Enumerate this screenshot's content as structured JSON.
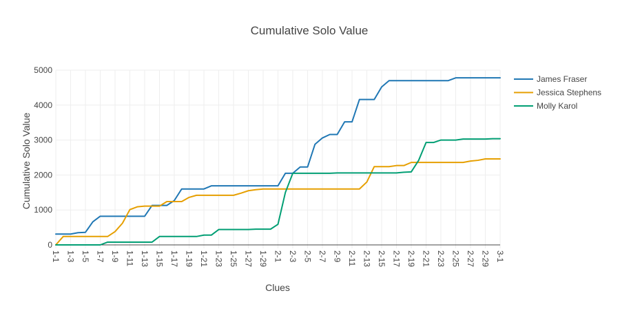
{
  "chart_data": {
    "type": "line",
    "title": "Cumulative Solo Value",
    "xlabel": "Clues",
    "ylabel": "Cumulative Solo Value",
    "ylim": [
      -100,
      5000
    ],
    "yticks": [
      0,
      1000,
      2000,
      3000,
      4000,
      5000
    ],
    "grid": true,
    "legend_position": "top-right",
    "x_tick_labels": [
      "1-1",
      "1-3",
      "1-5",
      "1-7",
      "1-9",
      "1-11",
      "1-13",
      "1-15",
      "1-17",
      "1-19",
      "1-21",
      "1-23",
      "1-25",
      "1-27",
      "1-29",
      "2-1",
      "2-3",
      "2-5",
      "2-7",
      "2-9",
      "2-11",
      "2-13",
      "2-15",
      "2-17",
      "2-19",
      "2-21",
      "2-23",
      "2-25",
      "2-27",
      "2-29",
      "3-1"
    ],
    "categories": [
      "1-1",
      "1-2",
      "1-3",
      "1-4",
      "1-5",
      "1-6",
      "1-7",
      "1-8",
      "1-9",
      "1-10",
      "1-11",
      "1-12",
      "1-13",
      "1-14",
      "1-15",
      "1-16",
      "1-17",
      "1-18",
      "1-19",
      "1-20",
      "1-21",
      "1-22",
      "1-23",
      "1-24",
      "1-25",
      "1-26",
      "1-27",
      "1-28",
      "1-29",
      "1-30",
      "2-1",
      "2-2",
      "2-3",
      "2-4",
      "2-5",
      "2-6",
      "2-7",
      "2-8",
      "2-9",
      "2-10",
      "2-11",
      "2-12",
      "2-13",
      "2-14",
      "2-15",
      "2-16",
      "2-17",
      "2-18",
      "2-19",
      "2-20",
      "2-21",
      "2-22",
      "2-23",
      "2-24",
      "2-25",
      "2-26",
      "2-27",
      "2-28",
      "2-29",
      "2-30",
      "3-1"
    ],
    "series": [
      {
        "name": "James Fraser",
        "color": "#1f77b4",
        "values": [
          310,
          310,
          310,
          350,
          360,
          660,
          820,
          820,
          820,
          820,
          820,
          820,
          820,
          1130,
          1130,
          1130,
          1270,
          1600,
          1600,
          1600,
          1600,
          1690,
          1690,
          1690,
          1690,
          1690,
          1690,
          1690,
          1690,
          1690,
          1690,
          2050,
          2050,
          2230,
          2230,
          2880,
          3060,
          3160,
          3160,
          3520,
          3520,
          4160,
          4160,
          4160,
          4520,
          4700,
          4700,
          4700,
          4700,
          4700,
          4700,
          4700,
          4700,
          4700,
          4780,
          4780,
          4780,
          4780,
          4780,
          4780,
          4780
        ]
      },
      {
        "name": "Jessica Stephens",
        "color": "#e69f00",
        "values": [
          0,
          240,
          240,
          240,
          240,
          240,
          240,
          240,
          380,
          620,
          1010,
          1090,
          1110,
          1110,
          1110,
          1240,
          1240,
          1240,
          1360,
          1420,
          1420,
          1420,
          1420,
          1420,
          1420,
          1480,
          1550,
          1580,
          1600,
          1600,
          1600,
          1600,
          1600,
          1600,
          1600,
          1600,
          1600,
          1600,
          1600,
          1600,
          1600,
          1600,
          1800,
          2240,
          2240,
          2240,
          2270,
          2270,
          2360,
          2360,
          2360,
          2360,
          2360,
          2360,
          2360,
          2360,
          2400,
          2420,
          2460,
          2460,
          2460
        ]
      },
      {
        "name": "Molly Karol",
        "color": "#009e73",
        "values": [
          0,
          0,
          0,
          0,
          0,
          0,
          0,
          80,
          80,
          80,
          80,
          80,
          80,
          80,
          240,
          240,
          240,
          240,
          240,
          240,
          280,
          280,
          440,
          440,
          440,
          440,
          440,
          450,
          450,
          450,
          590,
          1500,
          2050,
          2050,
          2050,
          2050,
          2050,
          2050,
          2060,
          2060,
          2060,
          2060,
          2060,
          2060,
          2060,
          2060,
          2060,
          2080,
          2090,
          2420,
          2930,
          2930,
          3000,
          3000,
          3000,
          3030,
          3030,
          3030,
          3030,
          3040,
          3040
        ]
      }
    ]
  }
}
